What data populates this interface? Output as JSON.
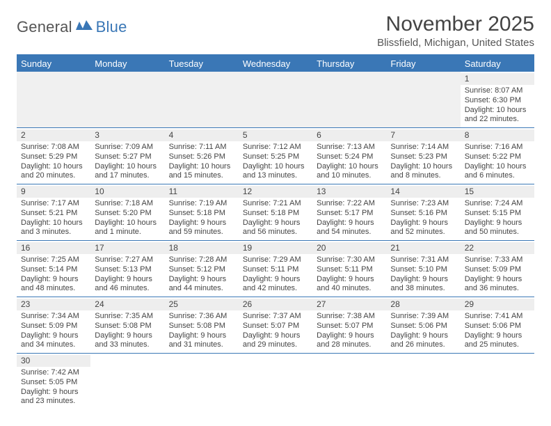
{
  "brand": {
    "word1": "General",
    "word2": "Blue",
    "icon_color": "#3a77b6",
    "text1_color": "#555555",
    "text2_color": "#3a77b6"
  },
  "header": {
    "month_title": "November 2025",
    "location": "Blissfield, Michigan, United States"
  },
  "styling": {
    "header_bg": "#3a77b6",
    "header_text": "#ffffff",
    "body_text": "#444444",
    "daynum_bg": "#eeeeee",
    "empty_bg": "#f0f0f0",
    "grid_line": "#3a77b6",
    "font_family": "Arial",
    "title_fontsize_pt": 22,
    "location_fontsize_pt": 11,
    "dayhead_fontsize_pt": 10,
    "cell_fontsize_pt": 8
  },
  "weekdays": [
    "Sunday",
    "Monday",
    "Tuesday",
    "Wednesday",
    "Thursday",
    "Friday",
    "Saturday"
  ],
  "weeks": [
    [
      null,
      null,
      null,
      null,
      null,
      null,
      {
        "n": "1",
        "sr": "Sunrise: 8:07 AM",
        "ss": "Sunset: 6:30 PM",
        "dl": "Daylight: 10 hours and 22 minutes."
      }
    ],
    [
      {
        "n": "2",
        "sr": "Sunrise: 7:08 AM",
        "ss": "Sunset: 5:29 PM",
        "dl": "Daylight: 10 hours and 20 minutes."
      },
      {
        "n": "3",
        "sr": "Sunrise: 7:09 AM",
        "ss": "Sunset: 5:27 PM",
        "dl": "Daylight: 10 hours and 17 minutes."
      },
      {
        "n": "4",
        "sr": "Sunrise: 7:11 AM",
        "ss": "Sunset: 5:26 PM",
        "dl": "Daylight: 10 hours and 15 minutes."
      },
      {
        "n": "5",
        "sr": "Sunrise: 7:12 AM",
        "ss": "Sunset: 5:25 PM",
        "dl": "Daylight: 10 hours and 13 minutes."
      },
      {
        "n": "6",
        "sr": "Sunrise: 7:13 AM",
        "ss": "Sunset: 5:24 PM",
        "dl": "Daylight: 10 hours and 10 minutes."
      },
      {
        "n": "7",
        "sr": "Sunrise: 7:14 AM",
        "ss": "Sunset: 5:23 PM",
        "dl": "Daylight: 10 hours and 8 minutes."
      },
      {
        "n": "8",
        "sr": "Sunrise: 7:16 AM",
        "ss": "Sunset: 5:22 PM",
        "dl": "Daylight: 10 hours and 6 minutes."
      }
    ],
    [
      {
        "n": "9",
        "sr": "Sunrise: 7:17 AM",
        "ss": "Sunset: 5:21 PM",
        "dl": "Daylight: 10 hours and 3 minutes."
      },
      {
        "n": "10",
        "sr": "Sunrise: 7:18 AM",
        "ss": "Sunset: 5:20 PM",
        "dl": "Daylight: 10 hours and 1 minute."
      },
      {
        "n": "11",
        "sr": "Sunrise: 7:19 AM",
        "ss": "Sunset: 5:18 PM",
        "dl": "Daylight: 9 hours and 59 minutes."
      },
      {
        "n": "12",
        "sr": "Sunrise: 7:21 AM",
        "ss": "Sunset: 5:18 PM",
        "dl": "Daylight: 9 hours and 56 minutes."
      },
      {
        "n": "13",
        "sr": "Sunrise: 7:22 AM",
        "ss": "Sunset: 5:17 PM",
        "dl": "Daylight: 9 hours and 54 minutes."
      },
      {
        "n": "14",
        "sr": "Sunrise: 7:23 AM",
        "ss": "Sunset: 5:16 PM",
        "dl": "Daylight: 9 hours and 52 minutes."
      },
      {
        "n": "15",
        "sr": "Sunrise: 7:24 AM",
        "ss": "Sunset: 5:15 PM",
        "dl": "Daylight: 9 hours and 50 minutes."
      }
    ],
    [
      {
        "n": "16",
        "sr": "Sunrise: 7:25 AM",
        "ss": "Sunset: 5:14 PM",
        "dl": "Daylight: 9 hours and 48 minutes."
      },
      {
        "n": "17",
        "sr": "Sunrise: 7:27 AM",
        "ss": "Sunset: 5:13 PM",
        "dl": "Daylight: 9 hours and 46 minutes."
      },
      {
        "n": "18",
        "sr": "Sunrise: 7:28 AM",
        "ss": "Sunset: 5:12 PM",
        "dl": "Daylight: 9 hours and 44 minutes."
      },
      {
        "n": "19",
        "sr": "Sunrise: 7:29 AM",
        "ss": "Sunset: 5:11 PM",
        "dl": "Daylight: 9 hours and 42 minutes."
      },
      {
        "n": "20",
        "sr": "Sunrise: 7:30 AM",
        "ss": "Sunset: 5:11 PM",
        "dl": "Daylight: 9 hours and 40 minutes."
      },
      {
        "n": "21",
        "sr": "Sunrise: 7:31 AM",
        "ss": "Sunset: 5:10 PM",
        "dl": "Daylight: 9 hours and 38 minutes."
      },
      {
        "n": "22",
        "sr": "Sunrise: 7:33 AM",
        "ss": "Sunset: 5:09 PM",
        "dl": "Daylight: 9 hours and 36 minutes."
      }
    ],
    [
      {
        "n": "23",
        "sr": "Sunrise: 7:34 AM",
        "ss": "Sunset: 5:09 PM",
        "dl": "Daylight: 9 hours and 34 minutes."
      },
      {
        "n": "24",
        "sr": "Sunrise: 7:35 AM",
        "ss": "Sunset: 5:08 PM",
        "dl": "Daylight: 9 hours and 33 minutes."
      },
      {
        "n": "25",
        "sr": "Sunrise: 7:36 AM",
        "ss": "Sunset: 5:08 PM",
        "dl": "Daylight: 9 hours and 31 minutes."
      },
      {
        "n": "26",
        "sr": "Sunrise: 7:37 AM",
        "ss": "Sunset: 5:07 PM",
        "dl": "Daylight: 9 hours and 29 minutes."
      },
      {
        "n": "27",
        "sr": "Sunrise: 7:38 AM",
        "ss": "Sunset: 5:07 PM",
        "dl": "Daylight: 9 hours and 28 minutes."
      },
      {
        "n": "28",
        "sr": "Sunrise: 7:39 AM",
        "ss": "Sunset: 5:06 PM",
        "dl": "Daylight: 9 hours and 26 minutes."
      },
      {
        "n": "29",
        "sr": "Sunrise: 7:41 AM",
        "ss": "Sunset: 5:06 PM",
        "dl": "Daylight: 9 hours and 25 minutes."
      }
    ],
    [
      {
        "n": "30",
        "sr": "Sunrise: 7:42 AM",
        "ss": "Sunset: 5:05 PM",
        "dl": "Daylight: 9 hours and 23 minutes."
      },
      null,
      null,
      null,
      null,
      null,
      null
    ]
  ]
}
